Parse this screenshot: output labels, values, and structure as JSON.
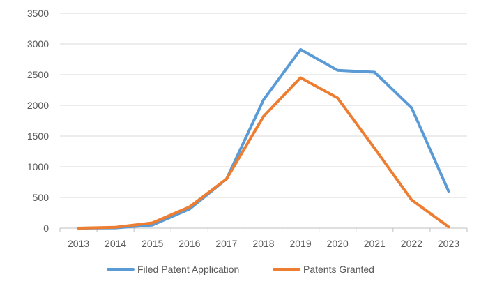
{
  "chart_data": {
    "type": "line",
    "title": "",
    "xlabel": "",
    "ylabel": "",
    "categories": [
      "2013",
      "2014",
      "2015",
      "2016",
      "2017",
      "2018",
      "2019",
      "2020",
      "2021",
      "2022",
      "2023"
    ],
    "ylim": [
      0,
      3500
    ],
    "yticks": [
      0,
      500,
      1000,
      1500,
      2000,
      2500,
      3000,
      3500
    ],
    "grid": true,
    "legend_position": "bottom",
    "series": [
      {
        "name": "Filed Patent Application",
        "color": "#5b9bd5",
        "values": [
          0,
          5,
          50,
          310,
          800,
          2090,
          2910,
          2570,
          2540,
          1960,
          600
        ]
      },
      {
        "name": "Patents Granted",
        "color": "#ed7d31",
        "values": [
          0,
          15,
          85,
          345,
          800,
          1820,
          2450,
          2120,
          1300,
          460,
          20
        ]
      }
    ]
  }
}
